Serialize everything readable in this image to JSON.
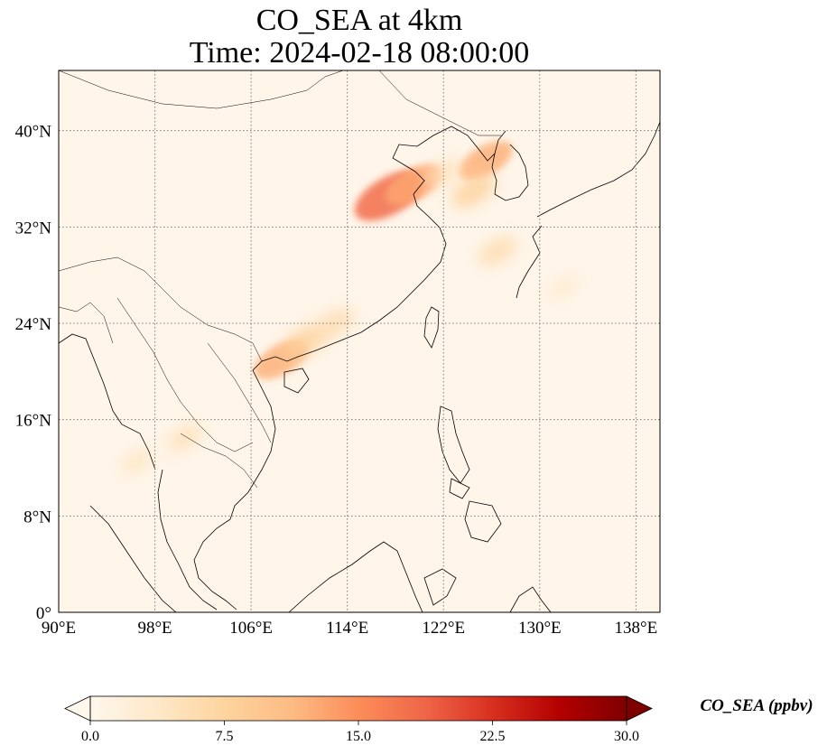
{
  "title": {
    "line1": "CO_SEA at 4km",
    "line2": "Time: 2024-02-18 08:00:00"
  },
  "map": {
    "lon_range": [
      90,
      140
    ],
    "lat_range": [
      0,
      45
    ],
    "lon_ticks": [
      {
        "value": 90,
        "label": "90°E"
      },
      {
        "value": 98,
        "label": "98°E"
      },
      {
        "value": 106,
        "label": "106°E"
      },
      {
        "value": 114,
        "label": "114°E"
      },
      {
        "value": 122,
        "label": "122°E"
      },
      {
        "value": 130,
        "label": "130°E"
      },
      {
        "value": 138,
        "label": "138°E"
      }
    ],
    "lat_ticks": [
      {
        "value": 0,
        "label": "0°"
      },
      {
        "value": 8,
        "label": "8°N"
      },
      {
        "value": 16,
        "label": "16°N"
      },
      {
        "value": 24,
        "label": "24°N"
      },
      {
        "value": 32,
        "label": "32°N"
      },
      {
        "value": 40,
        "label": "40°N"
      }
    ],
    "gridlines": true,
    "colormap": "OrRd",
    "plumes": [
      {
        "lon": 117.5,
        "lat": 34.6,
        "value": 18
      },
      {
        "lon": 119.5,
        "lat": 35.5,
        "value": 13
      },
      {
        "lon": 125.5,
        "lat": 37.5,
        "value": 12
      },
      {
        "lon": 124.5,
        "lat": 35.0,
        "value": 8
      },
      {
        "lon": 126.5,
        "lat": 30.0,
        "value": 6
      },
      {
        "lon": 122.0,
        "lat": 36.5,
        "value": 5
      },
      {
        "lon": 108.5,
        "lat": 21.0,
        "value": 12
      },
      {
        "lon": 110.5,
        "lat": 22.5,
        "value": 8
      },
      {
        "lon": 113.0,
        "lat": 24.0,
        "value": 6
      },
      {
        "lon": 100.5,
        "lat": 14.5,
        "value": 5
      },
      {
        "lon": 96.5,
        "lat": 12.5,
        "value": 4
      },
      {
        "lon": 132.0,
        "lat": 27.0,
        "value": 3
      }
    ]
  },
  "colorbar": {
    "min": 0.0,
    "max": 30.0,
    "ticks": [
      "0.0",
      "7.5",
      "15.0",
      "22.5",
      "30.0"
    ],
    "label": "CO_SEA (ppbv)",
    "colors": [
      "#fff7ec",
      "#fee8c8",
      "#fdd49e",
      "#fdbb84",
      "#fc8d59",
      "#ef6548",
      "#d7301f",
      "#b30000",
      "#7f0000"
    ]
  }
}
